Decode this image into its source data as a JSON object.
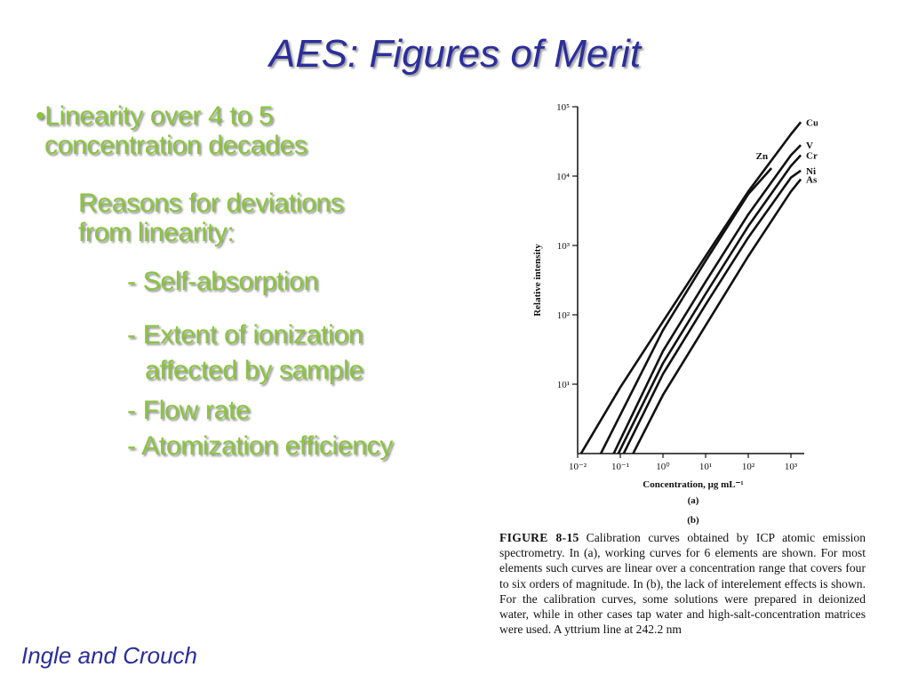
{
  "slide": {
    "title": "AES: Figures of Merit",
    "footer": "Ingle and Crouch",
    "bullets": {
      "linearity_1": "•Linearity over 4 to 5",
      "linearity_2": "concentration decades",
      "reasons_1": "Reasons for deviations",
      "reasons_2": "from linearity:",
      "self_absorption": "- Self-absorption",
      "ionization_1": "- Extent of ionization",
      "ionization_2": "affected by sample",
      "flow_rate": "- Flow rate",
      "atomization": "- Atomization efficiency"
    },
    "colors": {
      "title": "#2b2e9b",
      "bullet_text": "#8ac43f",
      "footer": "#2b2e9b"
    }
  },
  "figure": {
    "panel_a_label": "(a)",
    "panel_b_label": "(b)",
    "caption_head": "FIGURE 8-15",
    "caption_text": "Calibration curves obtained by ICP atomic emission spectrometry. In (a), working curves for 6 elements are shown. For most elements such curves are linear over a concentration range that covers four to six orders of magnitude. In (b), the lack of interelement effects is shown. For the calibration curves, some solutions were prepared in deionized water, while in other cases tap water and high-salt-concentration matrices were used. A yttrium line at 242.2 nm"
  },
  "chart_data": {
    "type": "line",
    "xlabel": "Concentration, μg mL⁻¹",
    "ylabel": "Relative intensity",
    "x_scale": "log",
    "y_scale": "log",
    "xlim": [
      0.01,
      1000
    ],
    "ylim": [
      1,
      100000
    ],
    "x_ticks": [
      "10⁻²",
      "10⁻¹",
      "10⁰",
      "10¹",
      "10²",
      "10³"
    ],
    "x_tick_values": [
      0.01,
      0.1,
      1,
      10,
      100,
      1000
    ],
    "y_ticks": [
      "10¹",
      "10²",
      "10³",
      "10⁴",
      "10⁵"
    ],
    "y_tick_values": [
      10,
      100,
      1000,
      10000,
      100000
    ],
    "grid": false,
    "legend": "none (labels at line ends)",
    "series": [
      {
        "name": "Cu",
        "x": [
          0.012,
          0.1,
          1,
          10,
          100,
          1000,
          1700
        ],
        "y": [
          1,
          9,
          80,
          700,
          6000,
          40000,
          60000
        ]
      },
      {
        "name": "Zn",
        "x": [
          0.035,
          1,
          10,
          100,
          350
        ],
        "y": [
          1,
          60,
          600,
          5500,
          13000
        ]
      },
      {
        "name": "V",
        "x": [
          0.07,
          1,
          10,
          100,
          1000,
          1700
        ],
        "y": [
          1,
          30,
          300,
          2800,
          20000,
          28000
        ]
      },
      {
        "name": "Cr",
        "x": [
          0.09,
          1,
          10,
          100,
          1000,
          1700
        ],
        "y": [
          1,
          20,
          200,
          1900,
          14000,
          20000
        ]
      },
      {
        "name": "Ni",
        "x": [
          0.12,
          1,
          10,
          100,
          1000,
          1700
        ],
        "y": [
          1,
          14,
          140,
          1300,
          9500,
          12000
        ]
      },
      {
        "name": "As",
        "x": [
          0.2,
          1,
          10,
          100,
          1000,
          1700
        ],
        "y": [
          1,
          7,
          70,
          700,
          6000,
          9000
        ]
      }
    ]
  }
}
